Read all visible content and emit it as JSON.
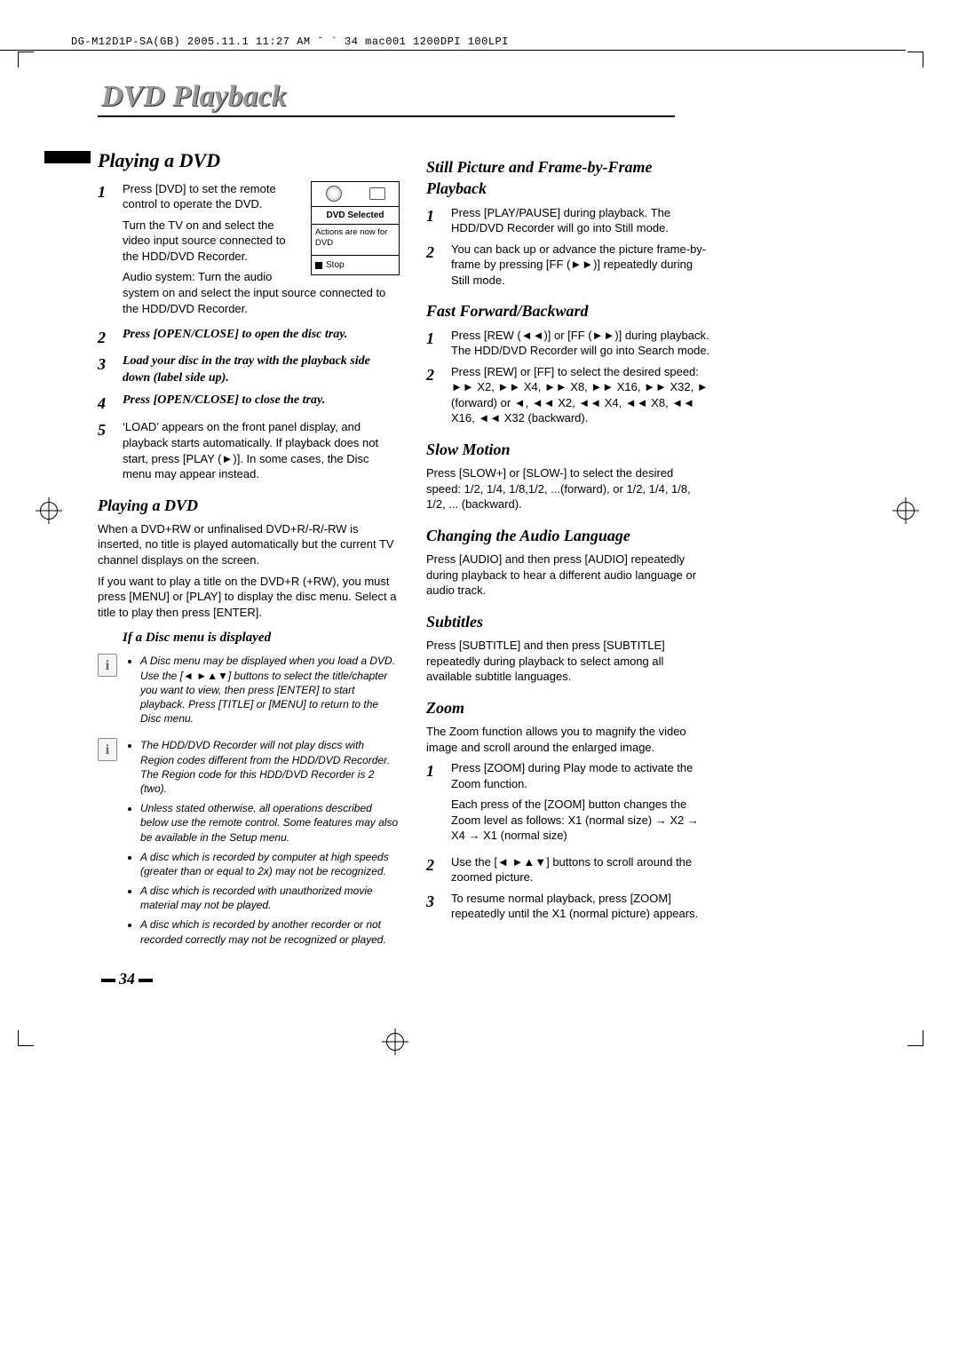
{
  "header": "DG-M12D1P-SA(GB)  2005.11.1 11:27 AM  ˘ ` 34   mac001  1200DPI 100LPI",
  "page_title": "DVD Playback",
  "page_number": "34",
  "infobox": {
    "label": "DVD Selected",
    "body": "Actions are now for DVD",
    "stop": "Stop"
  },
  "left": {
    "h2": "Playing a DVD",
    "s1": "Press [DVD] to set the remote control to operate the DVD.",
    "s1b": "Turn the TV on and select the video input source connected to the HDD/DVD Recorder.",
    "s1c": "Audio system: Turn the audio system on and select the input source connected to the HDD/DVD Recorder.",
    "s2": "Press [OPEN/CLOSE] to open the disc tray.",
    "s3": "Load your disc in the tray with the playback side down (label side up).",
    "s4": "Press [OPEN/CLOSE] to close the tray.",
    "s5": "‘LOAD’ appears on the front panel display, and playback starts automatically. If playback does not start, press [PLAY (►)]. In some cases, the Disc menu may appear instead.",
    "h3": "Playing a DVD",
    "p1": "When a DVD+RW or unfinalised DVD+R/-R/-RW is inserted, no title is played automatically but the current TV channel displays on the screen.",
    "p2": "If you want to play a title on the DVD+R (+RW), you must press [MENU] or [PLAY] to display the disc menu. Select a title to play then press [ENTER].",
    "sub": "If a Disc menu is displayed",
    "note1": "A Disc menu may be displayed when you load a DVD. Use the [◄ ►▲▼] buttons to select the title/chapter you want to view, then press [ENTER] to start playback. Press [TITLE] or [MENU] to return to the Disc menu.",
    "note2a": "The HDD/DVD Recorder will not play discs with Region codes different from the HDD/DVD Recorder. The Region code for this HDD/DVD Recorder is 2 (two).",
    "note2b": "Unless stated otherwise, all operations described below use the remote control. Some features may also be available in the Setup menu.",
    "note2c": "A disc which is recorded by computer at high speeds (greater than or equal to 2x) may not be recognized.",
    "note2d": "A disc which is recorded with unauthorized movie material may not be played.",
    "note2e": "A disc which is recorded by another recorder or not recorded correctly may not be recognized or played."
  },
  "right": {
    "h3a": "Still Picture and Frame-by-Frame Playback",
    "a1": "Press [PLAY/PAUSE] during playback. The HDD/DVD Recorder will go into Still mode.",
    "a2": "You can back up or advance the picture frame-by-frame by pressing [FF (►►)] repeatedly during Still mode.",
    "h3b": "Fast Forward/Backward",
    "b1": "Press [REW (◄◄)] or [FF (►►)] during playback. The HDD/DVD Recorder will go into Search mode.",
    "b2": "Press [REW] or [FF] to select the desired speed: ►► X2, ►► X4, ►► X8, ►► X16, ►► X32, ► (forward) or ◄, ◄◄ X2, ◄◄ X4, ◄◄ X8, ◄◄ X16, ◄◄ X32 (backward).",
    "h3c": "Slow Motion",
    "c1": "Press [SLOW+] or [SLOW-] to select the desired speed: 1/2, 1/4, 1/8,1/2, ...(forward), or 1/2, 1/4, 1/8, 1/2, ... (backward).",
    "h3d": "Changing the Audio Language",
    "d1": "Press [AUDIO] and then press [AUDIO] repeatedly during playback to hear a different audio language or audio track.",
    "h3e": "Subtitles",
    "e1": "Press [SUBTITLE] and then press [SUBTITLE] repeatedly during playback to select among all available subtitle languages.",
    "h3f": "Zoom",
    "f1": "The Zoom function allows you to magnify the video image and scroll around the enlarged image.",
    "f2": "Press [ZOOM] during Play mode to activate the Zoom function.",
    "f2b": "Each press of the [ZOOM] button changes the Zoom level as follows: X1 (normal size) → X2 → X4 → X1 (normal size)",
    "f3": "Use the [◄ ►▲▼] buttons to scroll around the zoomed picture.",
    "f4": "To resume normal playback, press [ZOOM] repeatedly until the X1 (normal picture) appears."
  },
  "colors": {
    "title_text": "#999999",
    "title_shadow": "#333333",
    "rule": "#000000",
    "body_text": "#000000"
  }
}
